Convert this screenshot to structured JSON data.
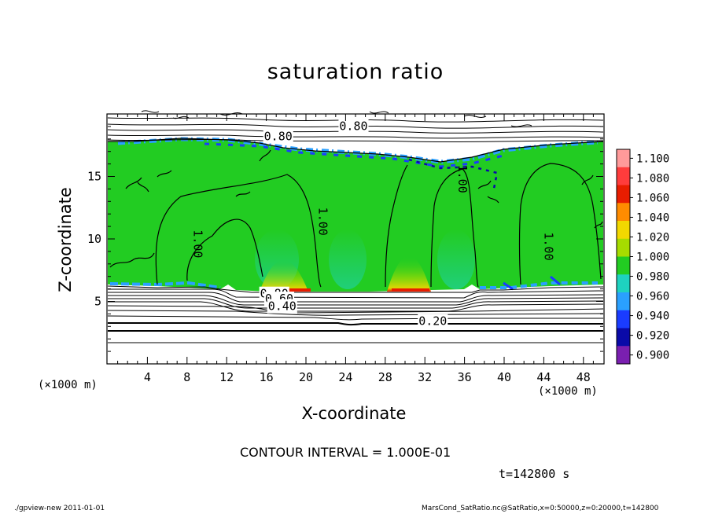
{
  "chart_data": {
    "type": "heatmap",
    "title": "saturation ratio",
    "xlabel": "X-coordinate",
    "ylabel": "Z-coordinate",
    "x_unit": "(×1000 m)",
    "x_ticks": [
      4,
      8,
      12,
      16,
      20,
      24,
      28,
      32,
      36,
      40,
      44,
      48
    ],
    "y_ticks": [
      5,
      10,
      15
    ],
    "xlim": [
      0,
      50
    ],
    "ylim": [
      0,
      20
    ],
    "colorbar": {
      "labels": [
        "1.100",
        "1.080",
        "1.060",
        "1.040",
        "1.020",
        "1.000",
        "0.980",
        "0.960",
        "0.940",
        "0.920",
        "0.900"
      ],
      "colors": [
        "#ff9a9a",
        "#ff3c3c",
        "#e81d00",
        "#ff8c00",
        "#f2d800",
        "#a6dc00",
        "#22cc22",
        "#1ed2c0",
        "#2aa0ff",
        "#1a3cff",
        "#0a0aa8",
        "#7a1fb0"
      ]
    },
    "contour_labels": [
      {
        "text": "0.80",
        "x": 24.8,
        "z": 18.7
      },
      {
        "text": "0.80",
        "x": 17.2,
        "z": 17.9
      },
      {
        "text": "1.00",
        "x": 21.3,
        "z": 11.4
      },
      {
        "text": "1.00",
        "x": 8.7,
        "z": 9.6
      },
      {
        "text": "1.00",
        "x": 35.4,
        "z": 14.8
      },
      {
        "text": "1.00",
        "x": 44.1,
        "z": 9.4
      },
      {
        "text": "0.80",
        "x": 16.8,
        "z": 5.3
      },
      {
        "text": "0.60",
        "x": 17.3,
        "z": 4.9
      },
      {
        "text": "0.40",
        "x": 17.6,
        "z": 4.3
      },
      {
        "text": "0.20",
        "x": 32.8,
        "z": 3.1
      }
    ],
    "annotations": {
      "contour_interval": "CONTOUR INTERVAL = 1.000E-01",
      "time": "t=142800 s"
    }
  },
  "footer": {
    "left": "./gpview-new   2011-01-01",
    "right": "MarsCond_SatRatio.nc@SatRatio,x=0:50000,z=0:20000,t=142800"
  }
}
